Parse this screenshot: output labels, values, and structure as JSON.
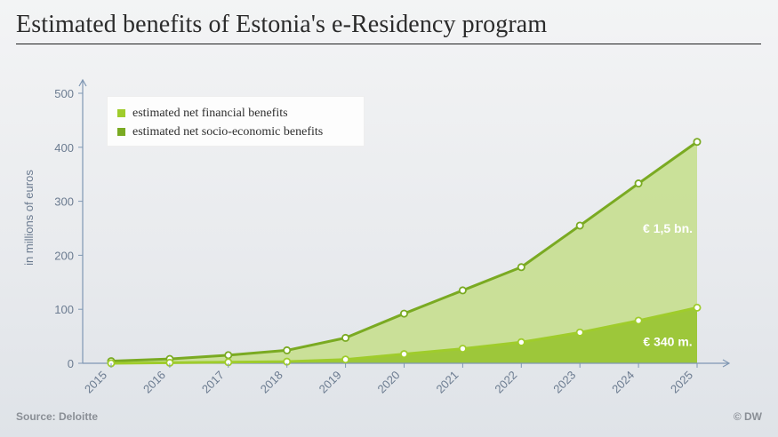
{
  "header": {
    "title": "Estimated benefits of Estonia's e-Residency program"
  },
  "footer": {
    "source": "Source: Deloitte",
    "credit": "© DW"
  },
  "colors": {
    "socio_line": "#7aaa22",
    "socio_fill": "#c6df8f",
    "financial_line": "#9fcc2c",
    "financial_fill": "#9dc73a",
    "axis": "#7f97b3",
    "tick_text": "#6b7b90",
    "annotation": "#ffffff"
  },
  "chart_data": {
    "type": "area",
    "title": "Estimated benefits of Estonia's e-Residency program",
    "xlabel": "",
    "ylabel": "in millions of euros",
    "ylim": [
      0,
      500
    ],
    "yticks": [
      "0",
      "100",
      "200",
      "300",
      "400",
      "500"
    ],
    "x": [
      "2015",
      "2016",
      "2017",
      "2018",
      "2019",
      "2020",
      "2021",
      "2022",
      "2023",
      "2024",
      "2025"
    ],
    "series": [
      {
        "name": "estimated net financial benefits",
        "values": [
          0,
          1,
          2,
          3,
          7,
          17,
          27,
          39,
          57,
          79,
          103
        ]
      },
      {
        "name": "estimated net socio-economic benefits",
        "values": [
          4,
          8,
          15,
          24,
          47,
          92,
          135,
          178,
          255,
          333,
          410
        ]
      }
    ],
    "annotations": [
      {
        "text": "€ 1,5 bn.",
        "x": "2024.5",
        "y": 250
      },
      {
        "text": "€ 340 m.",
        "x": "2024.5",
        "y": 40
      }
    ],
    "legend_position": "top-left",
    "grid": false
  }
}
